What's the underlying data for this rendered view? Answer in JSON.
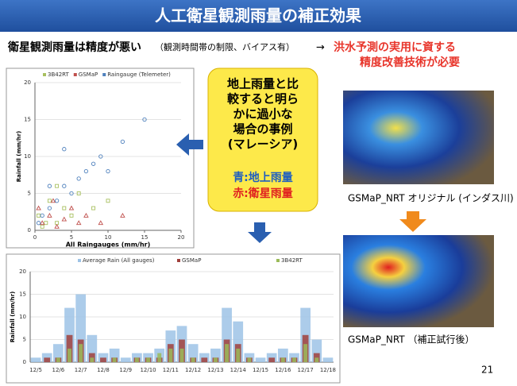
{
  "header": {
    "title": "人工衛星観測雨量の補正効果"
  },
  "statement": {
    "main": "衛星観測雨量は精度が悪い",
    "note": "（観測時間帯の制限、バイアス有）",
    "arrow": "→",
    "conclusion": [
      "洪水予測の実用に資する",
      "精度改善技術が必要"
    ]
  },
  "callout": {
    "lines": [
      "地上雨量と比",
      "較すると明ら",
      "かに過小な",
      "場合の事例",
      "(マレーシア)"
    ],
    "legend_blue": "青:地上雨量",
    "legend_red": "赤:衛星雨量"
  },
  "maps": [
    {
      "caption": "GSMaP_NRT オリジナル (インダス川)"
    },
    {
      "caption": "GSMaP_NRT （補正試行後）"
    }
  ],
  "page_number": "21",
  "chart_data": [
    {
      "type": "scatter",
      "xlabel": "All Raingauges (mm/hr)",
      "ylabel": "Rainfall (mm/hr)",
      "xlim": [
        0,
        20
      ],
      "xticks": [
        0,
        5,
        10,
        15,
        20
      ],
      "ylim": [
        0,
        20
      ],
      "yticks": [
        0,
        5,
        10,
        15,
        20
      ],
      "grid": true,
      "series": [
        {
          "name": "3B42RT",
          "color": "#a8c060",
          "marker": "square",
          "x": [
            0.5,
            1,
            2,
            3,
            4,
            5,
            6,
            8,
            10,
            3,
            1.5
          ],
          "values": [
            2,
            0.5,
            4,
            1,
            3,
            2,
            5,
            3,
            4,
            6,
            1
          ]
        },
        {
          "name": "GSMaP",
          "color": "#c0504d",
          "marker": "triangle",
          "x": [
            0.5,
            1,
            2,
            3,
            4,
            5,
            6,
            7,
            9,
            12,
            2.5
          ],
          "values": [
            3,
            1,
            2,
            0.5,
            1.5,
            3,
            1,
            2,
            1,
            2,
            4
          ]
        },
        {
          "name": "Raingauge (Telemeter)",
          "color": "#4f81bd",
          "marker": "circle",
          "x": [
            0.5,
            1,
            2,
            3,
            4,
            5,
            6,
            7,
            8,
            9,
            10,
            12,
            15,
            2,
            4
          ],
          "values": [
            1,
            2,
            3,
            4,
            6,
            5,
            7,
            8,
            9,
            10,
            8,
            12,
            15,
            6,
            11
          ]
        }
      ]
    },
    {
      "type": "bar",
      "ylabel": "Rainfall (mm/hr)",
      "ylim": [
        0,
        20
      ],
      "yticks": [
        0,
        5,
        10,
        15,
        20
      ],
      "grid": true,
      "categories": [
        "12/5",
        null,
        "12/6",
        null,
        "12/7",
        null,
        "12/8",
        null,
        "12/9",
        null,
        "12/10",
        null,
        "12/11",
        null,
        "12/12",
        null,
        "12/13",
        null,
        "12/14",
        null,
        "12/15",
        null,
        "12/16",
        null,
        "12/17",
        null,
        "12/18"
      ],
      "series": [
        {
          "name": "Average Rain (All gauges)",
          "color": "#9dc3e6",
          "values": [
            1,
            2,
            4,
            12,
            15,
            6,
            2,
            3,
            1,
            2,
            2,
            3,
            7,
            8,
            4,
            2,
            3,
            12,
            9,
            2,
            1,
            2,
            3,
            2,
            12,
            5,
            1
          ]
        },
        {
          "name": "GSMaP",
          "color": "#a0403c",
          "values": [
            0,
            1,
            1,
            6,
            5,
            2,
            1,
            1,
            0,
            1,
            1,
            1,
            4,
            5,
            1,
            1,
            1,
            5,
            4,
            1,
            0,
            1,
            1,
            1,
            6,
            2,
            0
          ]
        },
        {
          "name": "3B42RT",
          "color": "#9bbb59",
          "values": [
            0,
            0,
            1,
            3,
            4,
            1,
            0,
            1,
            0,
            1,
            1,
            2,
            3,
            3,
            1,
            0,
            1,
            4,
            3,
            1,
            0,
            0,
            1,
            1,
            4,
            1,
            0
          ]
        }
      ]
    }
  ]
}
